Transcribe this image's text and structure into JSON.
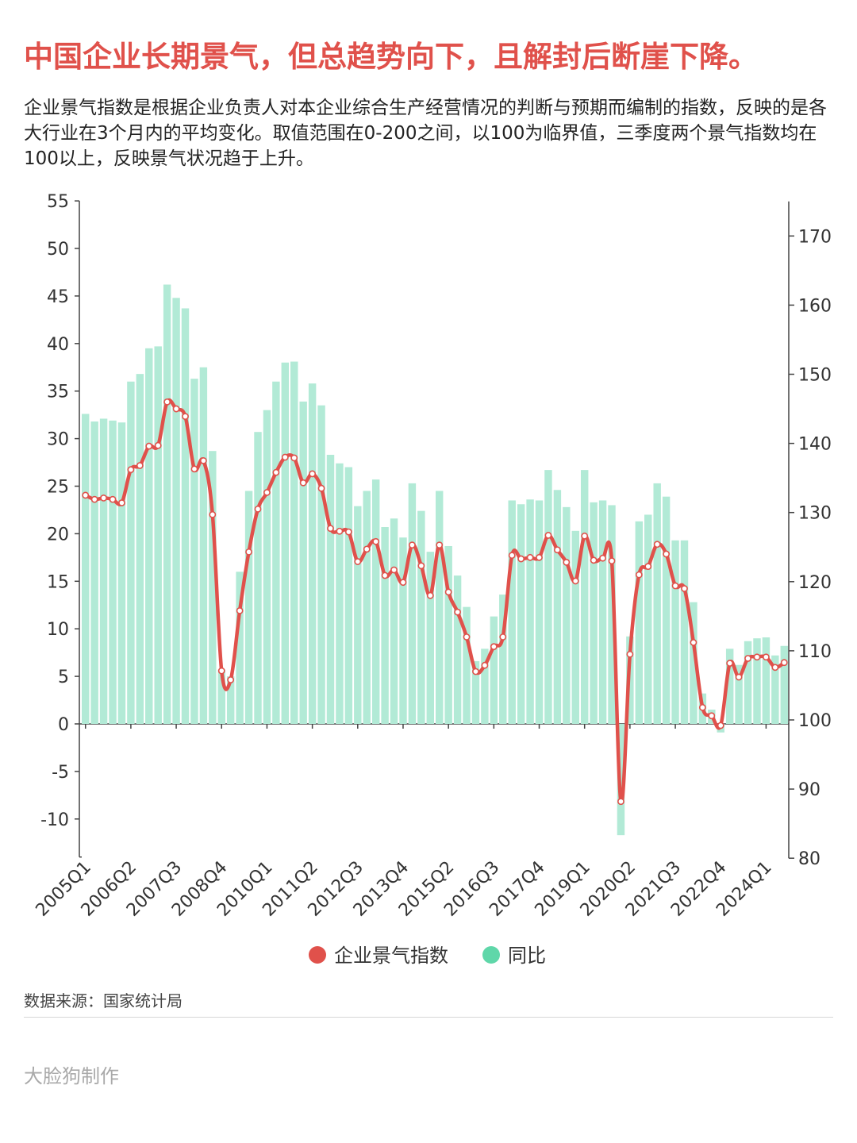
{
  "header": {
    "title": "中国企业长期景气，但总趋势向下，且解封后断崖下降。",
    "subtitle": "企业景气指数是根据企业负责人对本企业综合生产经营情况的判断与预期而编制的指数，反映的是各大行业在3个月内的平均变化。取值范围在0-200之间，以100为临界值，三季度两个景气指数均在100以上，反映景气状况趋于上升。"
  },
  "footer": {
    "source": "数据来源：国家统计局",
    "maker": "大脸狗制作"
  },
  "colors": {
    "title": "#e0514b",
    "line": "#e0514b",
    "bar": "#b2ead6",
    "legend_bar": "#5fd7a9"
  },
  "chart_data": {
    "type": "bar+line",
    "x_tick_labels": [
      "2005Q1",
      "2006Q2",
      "2007Q3",
      "2008Q4",
      "2010Q1",
      "2011Q2",
      "2012Q3",
      "2013Q4",
      "2015Q2",
      "2016Q3",
      "2017Q4",
      "2019Q1",
      "2020Q2",
      "2021Q3",
      "2022Q4",
      "2024Q1"
    ],
    "y_left": {
      "ticks": [
        55,
        50,
        45,
        40,
        35,
        30,
        25,
        20,
        15,
        10,
        5,
        0,
        -5,
        -10
      ],
      "range": [
        -14,
        55
      ]
    },
    "y_right": {
      "ticks": [
        170,
        160,
        150,
        140,
        130,
        120,
        110,
        100,
        90,
        80
      ],
      "range": [
        80,
        175
      ]
    },
    "legend_position": "bottom-center",
    "series": [
      {
        "name": "企业景气指数",
        "axis": "right",
        "kind": "line",
        "values": [
          132.5,
          131.9,
          132.1,
          131.9,
          131.4,
          136.2,
          136.8,
          139.6,
          139.7,
          146.0,
          145.0,
          143.9,
          136.3,
          137.5,
          129.7,
          107.1,
          105.8,
          115.8,
          124.3,
          130.5,
          132.9,
          135.8,
          138.0,
          137.9,
          134.3,
          135.6,
          133.5,
          127.7,
          127.3,
          127.2,
          122.9,
          124.7,
          125.8,
          120.9,
          121.7,
          119.9,
          125.3,
          122.3,
          118.0,
          125.3,
          118.5,
          115.6,
          112.0,
          107.0,
          107.9,
          110.6,
          112.0,
          123.8,
          123.3,
          123.5,
          123.5,
          126.7,
          124.6,
          122.8,
          120.1,
          126.6,
          123.1,
          123.4,
          123.0,
          88.2,
          109.5,
          121.0,
          122.2,
          125.4,
          124.0,
          119.4,
          119.0,
          111.2,
          101.8,
          100.6,
          99.2,
          108.2,
          106.2,
          108.9,
          109.1,
          109.1,
          107.6,
          108.3
        ]
      },
      {
        "name": "同比",
        "axis": "left",
        "kind": "bar",
        "values": [
          32.6,
          31.8,
          32.1,
          31.9,
          31.7,
          36.0,
          36.8,
          39.5,
          39.7,
          46.2,
          44.8,
          43.7,
          36.3,
          37.5,
          28.7,
          5.7,
          5.0,
          16.0,
          24.5,
          30.7,
          33.0,
          36.0,
          38.0,
          38.1,
          33.9,
          35.8,
          33.5,
          28.3,
          27.4,
          27.0,
          22.9,
          24.5,
          25.7,
          20.7,
          21.6,
          19.6,
          25.3,
          22.4,
          18.1,
          24.5,
          18.7,
          15.6,
          12.3,
          6.6,
          7.9,
          11.3,
          13.6,
          23.5,
          23.1,
          23.6,
          23.5,
          26.7,
          24.6,
          22.8,
          20.3,
          26.7,
          23.3,
          23.5,
          23.0,
          -11.7,
          9.2,
          21.3,
          22.0,
          25.3,
          23.9,
          19.3,
          19.3,
          12.8,
          3.2,
          1.5,
          -0.9,
          7.9,
          6.2,
          8.7,
          9.0,
          9.1,
          7.2,
          8.2
        ]
      }
    ]
  }
}
